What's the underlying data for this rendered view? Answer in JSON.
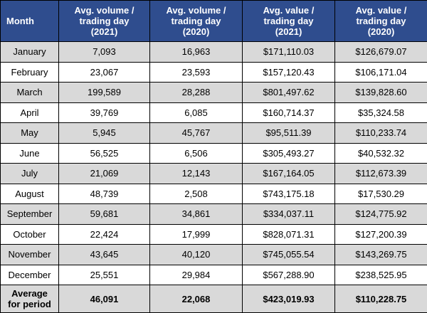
{
  "table": {
    "header": [
      [
        "Month"
      ],
      [
        "Avg. volume /",
        "trading day",
        "(2021)"
      ],
      [
        "Avg. volume /",
        "trading day",
        "(2020)"
      ],
      [
        "Avg. value /",
        "trading day",
        "(2021)"
      ],
      [
        "Avg. value /",
        "trading day",
        "(2020)"
      ]
    ],
    "rows": [
      [
        "January",
        "7,093",
        "16,963",
        "$171,110.03",
        "$126,679.07"
      ],
      [
        "February",
        "23,067",
        "23,593",
        "$157,120.43",
        "$106,171.04"
      ],
      [
        "March",
        "199,589",
        "28,288",
        "$801,497.62",
        "$139,828.60"
      ],
      [
        "April",
        "39,769",
        "6,085",
        "$160,714.37",
        "$35,324.58"
      ],
      [
        "May",
        "5,945",
        "45,767",
        "$95,511.39",
        "$110,233.74"
      ],
      [
        "June",
        "56,525",
        "6,506",
        "$305,493.27",
        "$40,532.32"
      ],
      [
        "July",
        "21,069",
        "12,143",
        "$167,164.05",
        "$112,673.39"
      ],
      [
        "August",
        "48,739",
        "2,508",
        "$743,175.18",
        "$17,530.29"
      ],
      [
        "September",
        "59,681",
        "34,861",
        "$334,037.11",
        "$124,775.92"
      ],
      [
        "October",
        "22,424",
        "17,999",
        "$828,071.31",
        "$127,200.39"
      ],
      [
        "November",
        "43,645",
        "40,120",
        "$745,055.54",
        "$143,269.75"
      ],
      [
        "December",
        "25,551",
        "29,984",
        "$567,288.90",
        "$238,525.95"
      ]
    ],
    "total": [
      [
        "Average",
        "for period"
      ],
      "46,091",
      "22,068",
      "$423,019.93",
      "$110,228.75"
    ]
  }
}
